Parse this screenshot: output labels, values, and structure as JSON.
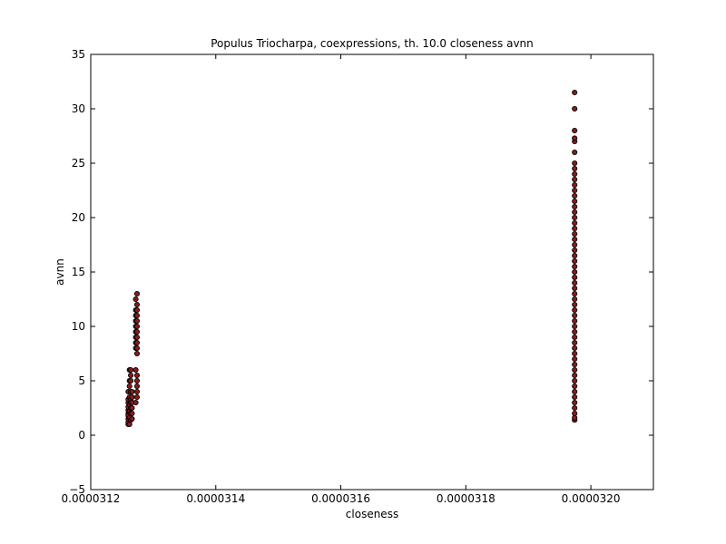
{
  "chart_data": {
    "type": "scatter",
    "title": "Populus Triocharpa, coexpressions, th. 10.0 closeness avnn",
    "xlabel": "closeness",
    "ylabel": "avnn",
    "xlim": [
      3.12e-05,
      3.21e-05
    ],
    "ylim": [
      -5,
      35
    ],
    "x_ticks": [
      3.12e-05,
      3.14e-05,
      3.16e-05,
      3.18e-05,
      3.2e-05
    ],
    "x_tick_labels": [
      "0.0000312",
      "0.0000314",
      "0.0000316",
      "0.0000318",
      "0.0000320"
    ],
    "y_ticks": [
      -5,
      0,
      5,
      10,
      15,
      20,
      25,
      30,
      35
    ],
    "y_tick_labels": [
      "−5",
      "0",
      "5",
      "10",
      "15",
      "20",
      "25",
      "30",
      "35"
    ],
    "grid": false,
    "marker_color": "#8b1a1a",
    "marker_edge": "#000000",
    "series": [
      {
        "points": [
          [
            3.126e-05,
            1.0
          ],
          [
            3.126e-05,
            1.2
          ],
          [
            3.126e-05,
            1.5
          ],
          [
            3.126e-05,
            2.0
          ],
          [
            3.126e-05,
            2.3
          ],
          [
            3.126e-05,
            2.6
          ],
          [
            3.126e-05,
            3.0
          ],
          [
            3.126e-05,
            3.3
          ],
          [
            3.126e-05,
            4.0
          ],
          [
            3.126e-05,
            1.8
          ],
          [
            3.1262e-05,
            1.0
          ],
          [
            3.1262e-05,
            1.6
          ],
          [
            3.1262e-05,
            2.2
          ],
          [
            3.1262e-05,
            2.8
          ],
          [
            3.1262e-05,
            3.5
          ],
          [
            3.1262e-05,
            4.5
          ],
          [
            3.1262e-05,
            5.0
          ],
          [
            3.1262e-05,
            6.0
          ],
          [
            3.1264e-05,
            1.4
          ],
          [
            3.1264e-05,
            2.0
          ],
          [
            3.1264e-05,
            2.5
          ],
          [
            3.1264e-05,
            3.0
          ],
          [
            3.1264e-05,
            3.3
          ],
          [
            3.1264e-05,
            4.0
          ],
          [
            3.1264e-05,
            5.0
          ],
          [
            3.1264e-05,
            5.5
          ],
          [
            3.1264e-05,
            6.0
          ],
          [
            3.1266e-05,
            1.5
          ],
          [
            3.1266e-05,
            2.0
          ],
          [
            3.1266e-05,
            2.5
          ],
          [
            3.1266e-05,
            3.0
          ],
          [
            3.1266e-05,
            3.5
          ],
          [
            3.1266e-05,
            4.0
          ],
          [
            3.1272e-05,
            3.0
          ],
          [
            3.1272e-05,
            6.0
          ],
          [
            3.1272e-05,
            8.0
          ],
          [
            3.1272e-05,
            8.5
          ],
          [
            3.1272e-05,
            9.0
          ],
          [
            3.1272e-05,
            9.5
          ],
          [
            3.1272e-05,
            10.0
          ],
          [
            3.1272e-05,
            10.5
          ],
          [
            3.1272e-05,
            11.0
          ],
          [
            3.1272e-05,
            11.5
          ],
          [
            3.1272e-05,
            12.5
          ],
          [
            3.1274e-05,
            3.5
          ],
          [
            3.1274e-05,
            4.0
          ],
          [
            3.1274e-05,
            4.5
          ],
          [
            3.1274e-05,
            5.0
          ],
          [
            3.1274e-05,
            5.5
          ],
          [
            3.1274e-05,
            7.5
          ],
          [
            3.1274e-05,
            8.0
          ],
          [
            3.1274e-05,
            8.5
          ],
          [
            3.1274e-05,
            9.0
          ],
          [
            3.1274e-05,
            9.5
          ],
          [
            3.1274e-05,
            10.0
          ],
          [
            3.1274e-05,
            10.5
          ],
          [
            3.1274e-05,
            11.0
          ],
          [
            3.1274e-05,
            11.5
          ],
          [
            3.1274e-05,
            12.0
          ],
          [
            3.1274e-05,
            13.0
          ],
          [
            3.1974e-05,
            1.4
          ],
          [
            3.1974e-05,
            1.6
          ],
          [
            3.1974e-05,
            2.0
          ],
          [
            3.1974e-05,
            2.5
          ],
          [
            3.1974e-05,
            3.0
          ],
          [
            3.1974e-05,
            3.5
          ],
          [
            3.1974e-05,
            4.0
          ],
          [
            3.1974e-05,
            4.5
          ],
          [
            3.1974e-05,
            5.0
          ],
          [
            3.1974e-05,
            5.5
          ],
          [
            3.1974e-05,
            6.0
          ],
          [
            3.1974e-05,
            6.5
          ],
          [
            3.1974e-05,
            7.0
          ],
          [
            3.1974e-05,
            7.5
          ],
          [
            3.1974e-05,
            8.0
          ],
          [
            3.1974e-05,
            8.5
          ],
          [
            3.1974e-05,
            9.0
          ],
          [
            3.1974e-05,
            9.5
          ],
          [
            3.1974e-05,
            10.0
          ],
          [
            3.1974e-05,
            10.5
          ],
          [
            3.1974e-05,
            11.0
          ],
          [
            3.1974e-05,
            11.5
          ],
          [
            3.1974e-05,
            12.0
          ],
          [
            3.1974e-05,
            12.5
          ],
          [
            3.1974e-05,
            13.0
          ],
          [
            3.1974e-05,
            13.5
          ],
          [
            3.1974e-05,
            14.0
          ],
          [
            3.1974e-05,
            14.5
          ],
          [
            3.1974e-05,
            15.0
          ],
          [
            3.1974e-05,
            15.5
          ],
          [
            3.1974e-05,
            16.0
          ],
          [
            3.1974e-05,
            16.5
          ],
          [
            3.1974e-05,
            17.0
          ],
          [
            3.1974e-05,
            17.5
          ],
          [
            3.1974e-05,
            18.0
          ],
          [
            3.1974e-05,
            18.5
          ],
          [
            3.1974e-05,
            19.0
          ],
          [
            3.1974e-05,
            19.5
          ],
          [
            3.1974e-05,
            20.0
          ],
          [
            3.1974e-05,
            20.5
          ],
          [
            3.1974e-05,
            21.0
          ],
          [
            3.1974e-05,
            21.5
          ],
          [
            3.1974e-05,
            22.0
          ],
          [
            3.1974e-05,
            22.5
          ],
          [
            3.1974e-05,
            23.0
          ],
          [
            3.1974e-05,
            23.5
          ],
          [
            3.1974e-05,
            24.0
          ],
          [
            3.1974e-05,
            24.5
          ],
          [
            3.1974e-05,
            25.0
          ],
          [
            3.1974e-05,
            26.0
          ],
          [
            3.1974e-05,
            27.0
          ],
          [
            3.1974e-05,
            27.3
          ],
          [
            3.1974e-05,
            28.0
          ],
          [
            3.1974e-05,
            30.0
          ],
          [
            3.1974e-05,
            31.5
          ]
        ]
      }
    ]
  }
}
